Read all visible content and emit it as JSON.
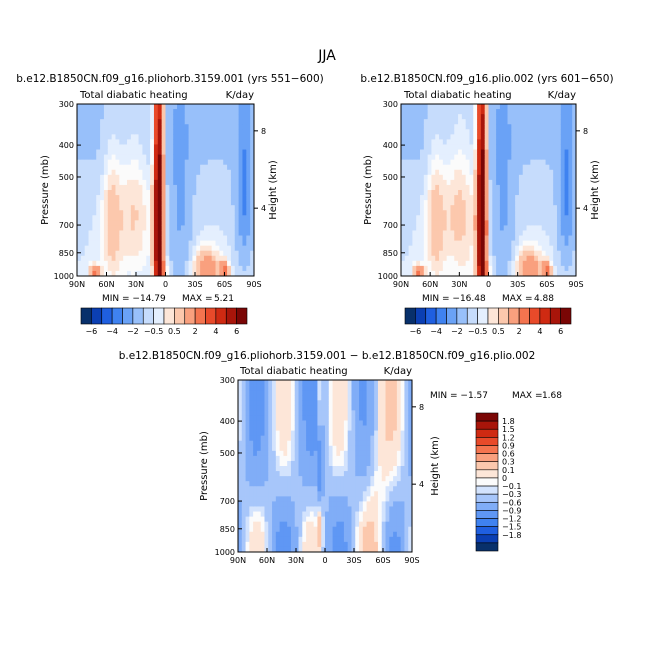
{
  "title": "JJA",
  "colors": {
    "neg": [
      "#08306b",
      "#0b3fb3",
      "#1f5fe0",
      "#3f82f0",
      "#6aa2f6",
      "#98c0fa",
      "#c6dcfc",
      "#e4effe"
    ],
    "pos": [
      "#fde6d8",
      "#fcc8ad",
      "#f9a07e",
      "#f4744f",
      "#e84a2a",
      "#cf2a12",
      "#a8150a",
      "#7a0605"
    ],
    "zero": "#fbfbfb"
  },
  "chart_data": [
    {
      "type": "heatmap",
      "title": "b.e12.B1850CN.f09_g16.pliohorb.3159.001 (yrs 551−600)",
      "subtitle_left": "Total diabatic heating",
      "subtitle_right": "K/day",
      "xlabel": "",
      "ylabel": "Pressure (mb)",
      "ylabel_right": "Height (km)",
      "x_ticks": [
        "90N",
        "60N",
        "30N",
        "0",
        "30S",
        "60S",
        "90S"
      ],
      "y_ticks": [
        "300",
        "400",
        "500",
        "700",
        "850",
        "1000"
      ],
      "y_ticks_right": [
        "8",
        "4"
      ],
      "ylim": [
        1000,
        300
      ],
      "min_label": "MIN = −14.79",
      "max_label": "MAX =",
      "max_value": "5.21",
      "colorbar": {
        "orientation": "horizontal",
        "labels": [
          "−6",
          "−4",
          "−2",
          "−0.5",
          "0.5",
          "2",
          "4",
          "6"
        ],
        "levels": [
          -8,
          -6,
          -4,
          -2,
          -1,
          -0.5,
          -0.25,
          0,
          0.25,
          0.5,
          1,
          2,
          4,
          6,
          8
        ]
      }
    },
    {
      "type": "heatmap",
      "title": "b.e12.B1850CN.f09_g16.plio.002 (yrs 601−650)",
      "subtitle_left": "Total diabatic heating",
      "subtitle_right": "K/day",
      "xlabel": "",
      "ylabel": "Pressure (mb)",
      "ylabel_right": "Height (km)",
      "x_ticks": [
        "90N",
        "60N",
        "30N",
        "0",
        "30S",
        "60S",
        "90S"
      ],
      "y_ticks": [
        "300",
        "400",
        "500",
        "700",
        "850",
        "1000"
      ],
      "y_ticks_right": [
        "8",
        "4"
      ],
      "ylim": [
        1000,
        300
      ],
      "min_label": "MIN = −16.48",
      "max_label": "MAX =",
      "max_value": "4.88",
      "colorbar": {
        "orientation": "horizontal",
        "labels": [
          "−6",
          "−4",
          "−2",
          "−0.5",
          "0.5",
          "2",
          "4",
          "6"
        ],
        "levels": [
          -8,
          -6,
          -4,
          -2,
          -1,
          -0.5,
          -0.25,
          0,
          0.25,
          0.5,
          1,
          2,
          4,
          6,
          8
        ]
      }
    },
    {
      "type": "heatmap",
      "title": "b.e12.B1850CN.f09_g16.pliohorb.3159.001 − b.e12.B1850CN.f09_g16.plio.002",
      "subtitle_left": "Total diabatic heating",
      "subtitle_right": "K/day",
      "xlabel": "",
      "ylabel": "Pressure (mb)",
      "ylabel_right": "Height (km)",
      "x_ticks": [
        "90N",
        "60N",
        "30N",
        "0",
        "30S",
        "60S",
        "90S"
      ],
      "y_ticks": [
        "300",
        "400",
        "500",
        "700",
        "850",
        "1000"
      ],
      "y_ticks_right": [
        "8",
        "4"
      ],
      "ylim": [
        1000,
        300
      ],
      "min_label": "MIN = −1.57",
      "max_label": "MAX =",
      "max_value": "1.68",
      "colorbar": {
        "orientation": "vertical",
        "labels": [
          "1.8",
          "1.5",
          "1.2",
          "0.9",
          "0.6",
          "0.3",
          "0.1",
          "0",
          "−0.1",
          "−0.3",
          "−0.6",
          "−0.9",
          "−1.2",
          "−1.5",
          "−1.8"
        ],
        "levels": [
          -2.1,
          -1.8,
          -1.5,
          -1.2,
          -0.9,
          -0.6,
          -0.3,
          -0.1,
          0,
          0.1,
          0.3,
          0.6,
          0.9,
          1.2,
          1.5,
          1.8,
          2.1
        ]
      }
    }
  ]
}
